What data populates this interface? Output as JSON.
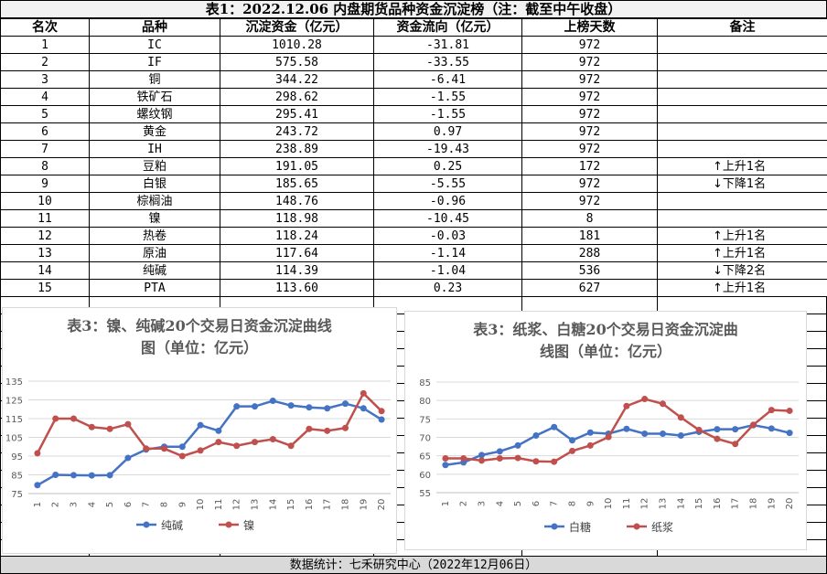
{
  "table": {
    "title": "表1：2022.12.06 内盘期货品种资金沉淀榜（注：截至中午收盘）",
    "headers": [
      "名次",
      "品种",
      "沉淀资金（亿元）",
      "资金流向（亿元）",
      "上榜天数",
      "备注"
    ],
    "rows": [
      [
        "1",
        "IC",
        "1010.28",
        "-31.81",
        "972",
        ""
      ],
      [
        "2",
        "IF",
        "575.58",
        "-33.55",
        "972",
        ""
      ],
      [
        "3",
        "铜",
        "344.22",
        "-6.41",
        "972",
        ""
      ],
      [
        "4",
        "铁矿石",
        "298.62",
        "-1.55",
        "972",
        ""
      ],
      [
        "5",
        "螺纹钢",
        "295.41",
        "-1.55",
        "972",
        ""
      ],
      [
        "6",
        "黄金",
        "243.72",
        "0.97",
        "972",
        ""
      ],
      [
        "7",
        "IH",
        "238.89",
        "-19.43",
        "972",
        ""
      ],
      [
        "8",
        "豆粕",
        "191.05",
        "0.25",
        "172",
        "↑上升1名"
      ],
      [
        "9",
        "白银",
        "185.65",
        "-5.55",
        "972",
        "↓下降1名"
      ],
      [
        "10",
        "棕榈油",
        "148.76",
        "-0.96",
        "972",
        ""
      ],
      [
        "11",
        "镍",
        "118.98",
        "-10.45",
        "8",
        ""
      ],
      [
        "12",
        "热卷",
        "118.24",
        "-0.03",
        "181",
        "↑上升1名"
      ],
      [
        "13",
        "原油",
        "117.64",
        "-1.14",
        "288",
        "↑上升1名"
      ],
      [
        "14",
        "纯碱",
        "114.39",
        "-1.04",
        "536",
        "↓下降2名"
      ],
      [
        "15",
        "PTA",
        "113.60",
        "0.23",
        "627",
        "↑上升1名"
      ]
    ]
  },
  "footer": "数据统计：七禾研究中心（2022年12月06日）",
  "chart_data": [
    {
      "type": "line",
      "title_line1": "表3：镍、纯碱20个交易日资金沉淀曲线",
      "title_line2": "图（单位：亿元）",
      "x": [
        "1",
        "2",
        "3",
        "4",
        "5",
        "6",
        "7",
        "8",
        "9",
        "10",
        "11",
        "12",
        "13",
        "14",
        "15",
        "16",
        "17",
        "18",
        "19",
        "20"
      ],
      "ylim": [
        75,
        135
      ],
      "yticks": [
        "75",
        "85",
        "95",
        "105",
        "115",
        "125",
        "135"
      ],
      "legend_position": "bottom",
      "series": [
        {
          "name": "纯碱",
          "color": "#4472c4",
          "values": [
            79.5,
            85,
            84.8,
            84.7,
            84.8,
            94,
            98.5,
            100,
            100,
            111.5,
            108.5,
            121.5,
            121.5,
            124.5,
            122,
            121,
            120.5,
            123,
            120.5,
            114.5
          ]
        },
        {
          "name": "镍",
          "color": "#c0504d",
          "values": [
            96.5,
            115,
            115,
            110.5,
            109.5,
            112,
            99,
            99,
            95,
            98,
            102.5,
            100.5,
            102.5,
            104,
            100.5,
            109.5,
            108.5,
            110,
            128.5,
            119
          ]
        }
      ]
    },
    {
      "type": "line",
      "title_line1": "表3：纸浆、白糖20个交易日资金沉淀曲",
      "title_line2": "线图（单位：亿元）",
      "x": [
        "1",
        "2",
        "3",
        "4",
        "5",
        "6",
        "7",
        "8",
        "9",
        "10",
        "11",
        "12",
        "13",
        "14",
        "15",
        "16",
        "17",
        "18",
        "19",
        "20"
      ],
      "ylim": [
        55,
        85
      ],
      "yticks": [
        "55",
        "60",
        "65",
        "70",
        "75",
        "80",
        "85"
      ],
      "legend_position": "bottom",
      "series": [
        {
          "name": "白糖",
          "color": "#4472c4",
          "values": [
            62.5,
            63.2,
            65.2,
            66.2,
            67.8,
            70.5,
            72.8,
            69.2,
            71.3,
            71,
            72.3,
            71,
            71,
            70.5,
            71.5,
            72.2,
            72.2,
            73.3,
            72.4,
            71.2
          ]
        },
        {
          "name": "纸浆",
          "color": "#c0504d",
          "values": [
            64.3,
            64.3,
            63.7,
            64.3,
            64.4,
            63.5,
            63.4,
            66.3,
            67.8,
            70.1,
            78.5,
            80.4,
            79.1,
            75.4,
            72,
            69.6,
            68.2,
            73.4,
            77.4,
            77.2
          ]
        }
      ]
    }
  ]
}
